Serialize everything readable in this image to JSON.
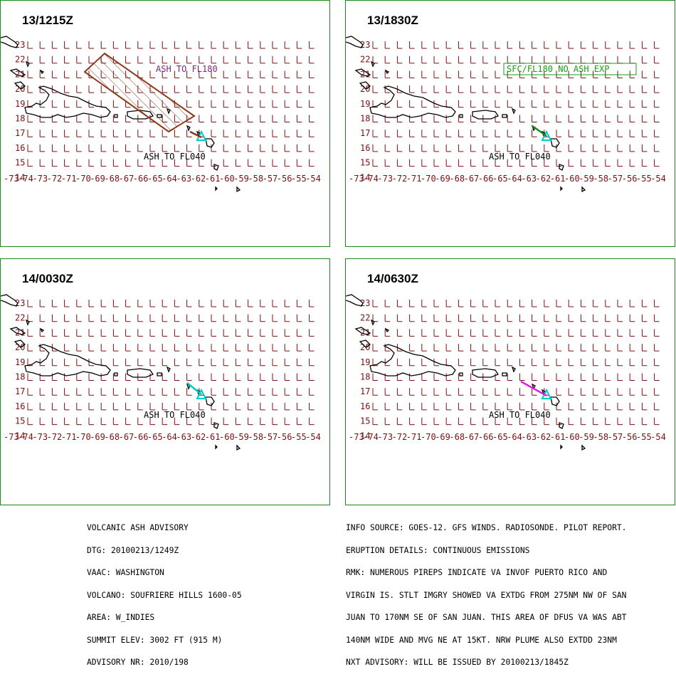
{
  "panels": [
    {
      "time": "13/1215Z",
      "cloud_label": "ASH TO FL180",
      "ash_label": "ASH TO FL040",
      "expire_label": "",
      "shows_polygon": true,
      "plume_color": "#8b3a1a"
    },
    {
      "time": "13/1830Z",
      "cloud_label": "",
      "ash_label": "ASH TO FL040",
      "expire_label": "SFC/FL180 NO ASH EXP",
      "shows_polygon": false,
      "plume_color": "#1a8a1a"
    },
    {
      "time": "14/0030Z",
      "cloud_label": "",
      "ash_label": "ASH TO FL040",
      "expire_label": "",
      "shows_polygon": false,
      "plume_color": "#00cccc"
    },
    {
      "time": "14/0630Z",
      "cloud_label": "",
      "ash_label": "ASH TO FL040",
      "expire_label": "",
      "shows_polygon": false,
      "plume_color": "#e020e0"
    }
  ],
  "map": {
    "longitudes": [
      "-73",
      "-74",
      "-73",
      "-72",
      "-71",
      "-70",
      "-69",
      "-68",
      "-67",
      "-66",
      "-65",
      "-64",
      "-63",
      "-62",
      "-61",
      "-60",
      "-59",
      "-58",
      "-57",
      "-56",
      "-55",
      "-54"
    ],
    "latitudes": [
      "23",
      "22",
      "21",
      "20",
      "19",
      "18",
      "17",
      "16",
      "15",
      "14"
    ],
    "grid_color": "#7a1010",
    "coast_color": "#000000",
    "volcano_color": "#00cccc"
  },
  "advisory_left": [
    "VOLCANIC ASH ADVISORY",
    "DTG: 20100213/1249Z",
    "VAAC: WASHINGTON",
    "VOLCANO: SOUFRIERE HILLS 1600-05",
    "AREA: W_INDIES",
    "SUMMIT ELEV: 3002 FT (915 M)",
    "ADVISORY NR: 2010/198"
  ],
  "advisory_right": [
    "INFO SOURCE: GOES-12. GFS WINDS. RADIOSONDE. PILOT REPORT.",
    "ERUPTION DETAILS: CONTINUOUS EMISSIONS",
    "RMK: NUMEROUS PIREPS INDICATE VA INVOF PUERTO RICO AND",
    "VIRGIN IS. STLT IMGRY SHOWED VA EXTDG FROM 275NM NW OF SAN",
    "JUAN TO 170NM SE OF SAN JUAN. THIS AREA OF DFUS VA WAS ABT",
    "140NM WIDE AND MVG NE AT 15KT. NRW PLUME ALSO EXTDD 23NM",
    "NXT ADVISORY: WILL BE ISSUED BY 20100213/1845Z"
  ]
}
